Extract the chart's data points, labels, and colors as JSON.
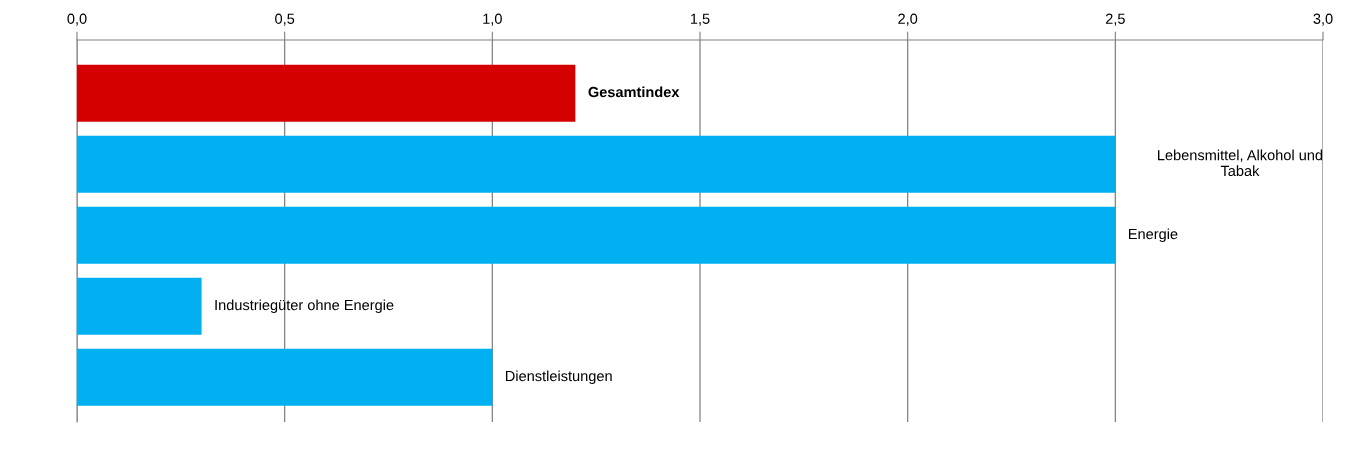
{
  "chart_data": {
    "type": "bar",
    "orientation": "horizontal",
    "categories": [
      "Gesamtindex",
      "Lebensmittel, Alkohol und\nTabak",
      "Energie",
      "Industriegüter ohne Energie",
      "Dienstleistungen"
    ],
    "values": [
      1.2,
      2.5,
      2.5,
      0.3,
      1.0
    ],
    "colors": [
      "#d40000",
      "#00b0f0",
      "#00b0f0",
      "#00b0f0",
      "#00b0f0"
    ],
    "xlim": [
      0,
      3
    ],
    "xticks": [
      {
        "value": 0,
        "label": "0,0"
      },
      {
        "value": 0.5,
        "label": "0,5"
      },
      {
        "value": 1,
        "label": "1,0"
      },
      {
        "value": 1.5,
        "label": "1,5"
      },
      {
        "value": 2,
        "label": "2,0"
      },
      {
        "value": 2.5,
        "label": "2,5"
      },
      {
        "value": 3,
        "label": "3,0"
      }
    ],
    "tick_labels": "x",
    "grid": "x",
    "legend": false
  }
}
